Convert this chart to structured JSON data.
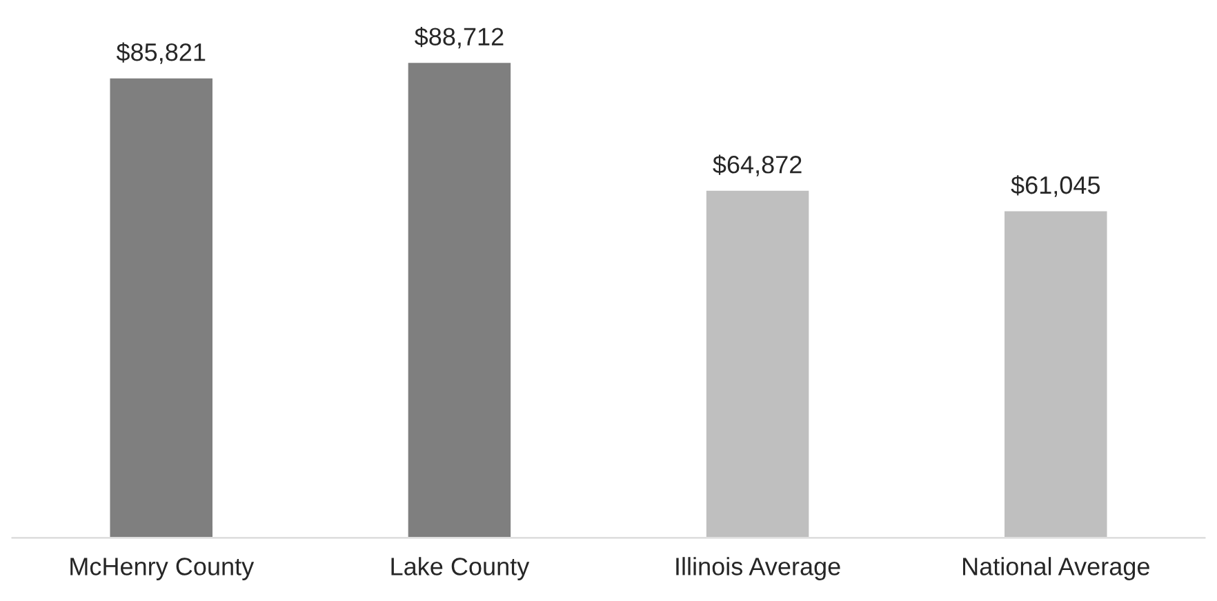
{
  "chart_data": {
    "type": "bar",
    "categories": [
      "McHenry County",
      "Lake County",
      "Illinois Average",
      "National Average"
    ],
    "values": [
      85821,
      88712,
      64872,
      61045
    ],
    "colors": [
      "#7f7f7f",
      "#7f7f7f",
      "#bfbfbf",
      "#bfbfbf"
    ],
    "value_labels": [
      "$85,821",
      "$88,712",
      "$64,872",
      "$61,045"
    ],
    "grid": false,
    "legend": false
  }
}
